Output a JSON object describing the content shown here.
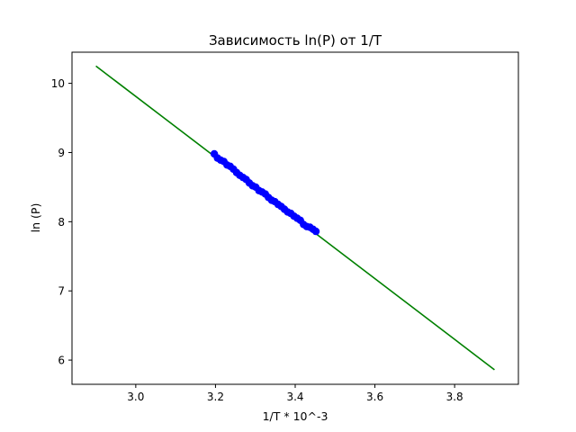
{
  "chart_data": {
    "type": "scatter",
    "title": "Зависимость ln(P) от 1/T",
    "xlabel": "1/T * 10^-3",
    "ylabel": "ln (P)",
    "xlim": [
      2.84,
      3.96
    ],
    "ylim": [
      5.65,
      10.45
    ],
    "xticks": [
      3.0,
      3.2,
      3.4,
      3.6,
      3.8
    ],
    "xtick_labels": [
      "3.0",
      "3.2",
      "3.4",
      "3.6",
      "3.8"
    ],
    "yticks": [
      6,
      7,
      8,
      9,
      10
    ],
    "ytick_labels": [
      "6",
      "7",
      "8",
      "9",
      "10"
    ],
    "grid": false,
    "series": [
      {
        "kind": "line",
        "color": "#008000",
        "x": [
          2.9,
          3.9
        ],
        "y": [
          10.25,
          5.86
        ]
      },
      {
        "kind": "scatter",
        "color": "#0000ff",
        "x": [
          3.197,
          3.205,
          3.213,
          3.221,
          3.229,
          3.237,
          3.245,
          3.253,
          3.261,
          3.269,
          3.277,
          3.285,
          3.293,
          3.301,
          3.309,
          3.317,
          3.325,
          3.333,
          3.341,
          3.349,
          3.357,
          3.365,
          3.373,
          3.381,
          3.389,
          3.397,
          3.405,
          3.413,
          3.421,
          3.429,
          3.437,
          3.445,
          3.452
        ],
        "y": [
          8.98,
          8.92,
          8.89,
          8.87,
          8.82,
          8.8,
          8.76,
          8.71,
          8.67,
          8.64,
          8.61,
          8.56,
          8.52,
          8.5,
          8.45,
          8.43,
          8.4,
          8.35,
          8.31,
          8.29,
          8.25,
          8.22,
          8.18,
          8.14,
          8.12,
          8.08,
          8.05,
          8.02,
          7.96,
          7.93,
          7.92,
          7.89,
          7.86
        ]
      }
    ]
  }
}
